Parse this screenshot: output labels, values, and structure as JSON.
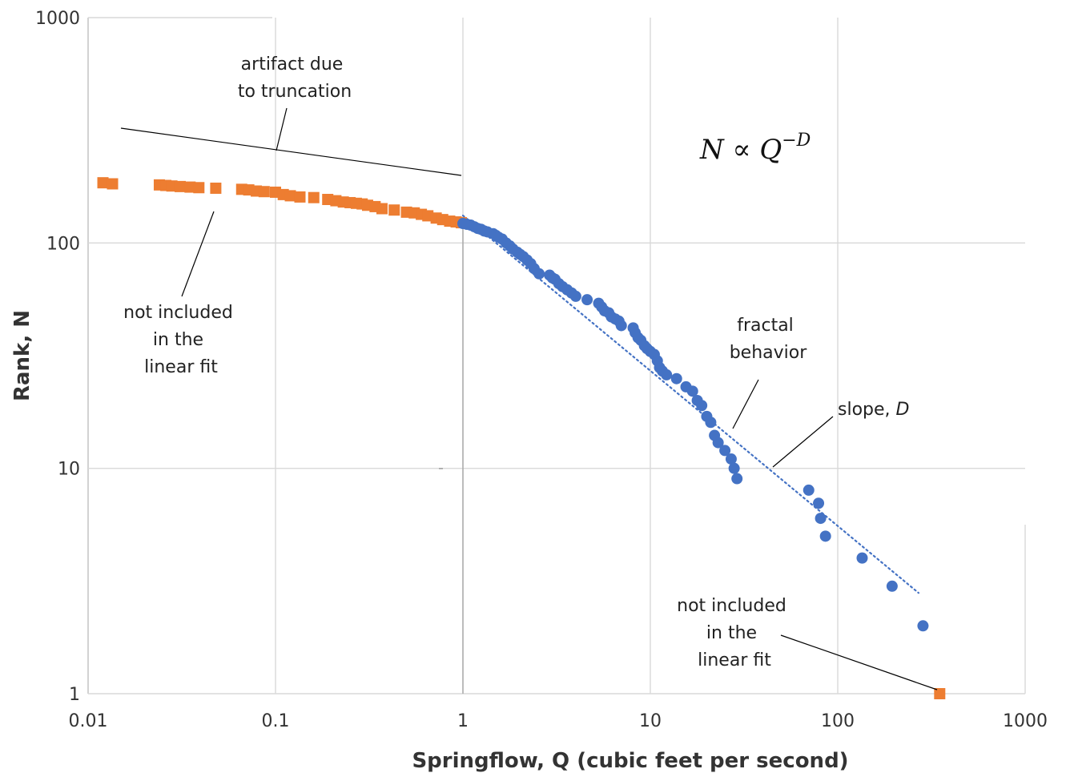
{
  "chart_data": {
    "type": "scatter",
    "xscale": "log",
    "yscale": "log",
    "xlim": [
      0.01,
      1000
    ],
    "ylim": [
      1,
      1000
    ],
    "xlabel": "Springflow, Q (cubic feet per second)",
    "ylabel": "Rank, N",
    "x_ticks": [
      "0.01",
      "0.1",
      "1",
      "10",
      "100",
      "1000"
    ],
    "y_ticks": [
      "1",
      "10",
      "100",
      "1000"
    ],
    "grid": true,
    "legend": "none",
    "formula": {
      "base": "N ∝ Q",
      "exponent": "−D"
    },
    "colors": {
      "excluded": "#ED7D31",
      "included": "#4472C4",
      "fit": "#4472C4",
      "grid": "#D9D9D9",
      "annotation": "#000000"
    },
    "series": [
      {
        "role": "excluded",
        "marker": "square",
        "points": [
          [
            0.012,
            185
          ],
          [
            0.0135,
            183
          ],
          [
            0.024,
            181
          ],
          [
            0.026,
            180
          ],
          [
            0.028,
            179
          ],
          [
            0.031,
            178
          ],
          [
            0.035,
            177
          ],
          [
            0.039,
            176
          ],
          [
            0.048,
            175
          ],
          [
            0.066,
            173
          ],
          [
            0.072,
            172
          ],
          [
            0.079,
            170
          ],
          [
            0.087,
            169
          ],
          [
            0.1,
            168
          ],
          [
            0.11,
            164
          ],
          [
            0.12,
            162
          ],
          [
            0.135,
            160
          ],
          [
            0.16,
            159
          ],
          [
            0.19,
            156
          ],
          [
            0.21,
            154
          ],
          [
            0.23,
            152
          ],
          [
            0.25,
            151
          ],
          [
            0.27,
            150
          ],
          [
            0.29,
            149
          ],
          [
            0.31,
            147
          ],
          [
            0.34,
            145
          ],
          [
            0.37,
            142
          ],
          [
            0.43,
            140
          ],
          [
            0.5,
            137
          ],
          [
            0.55,
            136
          ],
          [
            0.6,
            134
          ],
          [
            0.65,
            132
          ],
          [
            0.72,
            129
          ],
          [
            0.78,
            127
          ],
          [
            0.85,
            125
          ],
          [
            0.92,
            124
          ],
          [
            0.98,
            123
          ],
          [
            350,
            1
          ]
        ]
      },
      {
        "role": "included",
        "marker": "circle",
        "points": [
          [
            1.0,
            122
          ],
          [
            1.05,
            121
          ],
          [
            1.1,
            120
          ],
          [
            1.15,
            118
          ],
          [
            1.2,
            116
          ],
          [
            1.25,
            115
          ],
          [
            1.3,
            113
          ],
          [
            1.35,
            112
          ],
          [
            1.45,
            110
          ],
          [
            1.5,
            108
          ],
          [
            1.55,
            106
          ],
          [
            1.62,
            104
          ],
          [
            1.7,
            100
          ],
          [
            1.78,
            97
          ],
          [
            1.85,
            94
          ],
          [
            1.95,
            91
          ],
          [
            2.02,
            89
          ],
          [
            2.1,
            87
          ],
          [
            2.2,
            84
          ],
          [
            2.3,
            81
          ],
          [
            2.4,
            77
          ],
          [
            2.55,
            73
          ],
          [
            2.9,
            72
          ],
          [
            3.0,
            70
          ],
          [
            3.1,
            69
          ],
          [
            3.25,
            66
          ],
          [
            3.4,
            64
          ],
          [
            3.6,
            62
          ],
          [
            3.8,
            60
          ],
          [
            4.0,
            58
          ],
          [
            4.6,
            56
          ],
          [
            5.3,
            54
          ],
          [
            5.5,
            52
          ],
          [
            5.7,
            50
          ],
          [
            6.0,
            49
          ],
          [
            6.2,
            47
          ],
          [
            6.5,
            46
          ],
          [
            6.8,
            45
          ],
          [
            7.0,
            43
          ],
          [
            8.1,
            42
          ],
          [
            8.3,
            40
          ],
          [
            8.6,
            38
          ],
          [
            8.9,
            37
          ],
          [
            9.3,
            35
          ],
          [
            9.6,
            34
          ],
          [
            10.0,
            33
          ],
          [
            10.5,
            32
          ],
          [
            10.9,
            30
          ],
          [
            11.2,
            28
          ],
          [
            11.6,
            27
          ],
          [
            12.2,
            26
          ],
          [
            13.8,
            25
          ],
          [
            15.5,
            23
          ],
          [
            16.8,
            22
          ],
          [
            17.8,
            20
          ],
          [
            18.8,
            19
          ],
          [
            20.0,
            17
          ],
          [
            21.0,
            16
          ],
          [
            22.0,
            14
          ],
          [
            23.0,
            13
          ],
          [
            25.0,
            12
          ],
          [
            27.0,
            11
          ],
          [
            28.0,
            10
          ],
          [
            29.0,
            9
          ],
          [
            70.0,
            8
          ],
          [
            79.0,
            7
          ],
          [
            81.0,
            6
          ],
          [
            86.0,
            5
          ],
          [
            135.0,
            4
          ],
          [
            195.0,
            3
          ],
          [
            285.0,
            2
          ]
        ]
      }
    ],
    "fit_line": {
      "role": "fit",
      "style": "dotted",
      "from": [
        1.0,
        122
      ],
      "to": [
        270.0,
        2.8
      ]
    },
    "annotations": [
      {
        "lines": [
          "artifact due",
          "to truncation"
        ]
      },
      {
        "lines": [
          "not included",
          "in the",
          "linear fit"
        ]
      },
      {
        "lines": [
          "fractal",
          "behavior"
        ]
      },
      {
        "lines": [
          "slope, ",
          "D"
        ]
      },
      {
        "lines": [
          "not included",
          "in the",
          "linear fit"
        ]
      }
    ]
  }
}
